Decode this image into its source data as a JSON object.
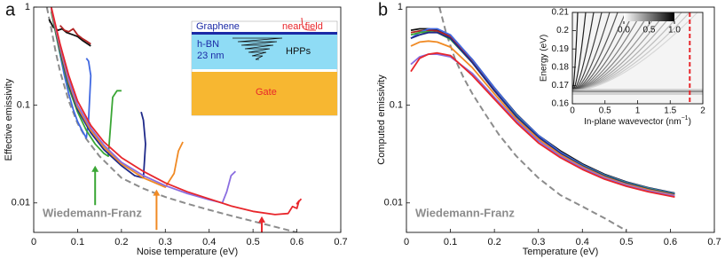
{
  "chart_data": [
    {
      "type": "line",
      "panel_label": "a",
      "xlabel": "Noise temperature (eV)",
      "ylabel": "Effective emissivity",
      "xlim": [
        0,
        0.7
      ],
      "xticks": [
        0,
        0.1,
        0.2,
        0.3,
        0.4,
        0.5,
        0.6,
        0.7
      ],
      "ylim": [
        0.005,
        1
      ],
      "yticks": [
        0.01,
        0.1,
        1
      ],
      "yscale": "log",
      "annotation": "Wiedemann-Franz",
      "annotation_color": "#8c8c8c",
      "schematic": {
        "graphene": "Graphene",
        "near_field": "near-field",
        "hbn": "h-BN",
        "thickness": "23 nm",
        "hpps": "HPPs",
        "gate": "Gate"
      },
      "series": [
        {
          "color": "#8c8c8c",
          "dash": true,
          "x": [
            0.03,
            0.04,
            0.05,
            0.06,
            0.08,
            0.1,
            0.12,
            0.15,
            0.2,
            0.25,
            0.3,
            0.35,
            0.4,
            0.45,
            0.5,
            0.55,
            0.6
          ],
          "values": [
            1,
            0.6,
            0.35,
            0.22,
            0.11,
            0.065,
            0.045,
            0.03,
            0.018,
            0.014,
            0.0115,
            0.0098,
            0.0085,
            0.0074,
            0.0065,
            0.0057,
            0.005
          ]
        },
        {
          "color": "#111111",
          "x": [
            0.035,
            0.045,
            0.055,
            0.065,
            0.075,
            0.09,
            0.1,
            0.11,
            0.12,
            0.13
          ],
          "values": [
            0.75,
            0.62,
            0.58,
            0.6,
            0.55,
            0.52,
            0.5,
            0.46,
            0.43,
            0.4
          ]
        },
        {
          "color": "#b22222",
          "x": [
            0.06,
            0.07,
            0.08,
            0.09,
            0.1,
            0.11,
            0.12,
            0.13
          ],
          "values": [
            0.65,
            0.58,
            0.56,
            0.6,
            0.52,
            0.48,
            0.45,
            0.42
          ]
        },
        {
          "color": "#4169e1",
          "x": [
            0.04,
            0.05,
            0.06,
            0.07,
            0.08,
            0.09,
            0.1,
            0.11,
            0.12,
            0.125,
            0.13,
            0.125,
            0.12
          ],
          "values": [
            0.9,
            0.55,
            0.33,
            0.2,
            0.13,
            0.09,
            0.068,
            0.055,
            0.046,
            0.07,
            0.2,
            0.28,
            0.3
          ]
        },
        {
          "color": "#3aa635",
          "x": [
            0.04,
            0.05,
            0.06,
            0.08,
            0.1,
            0.12,
            0.14,
            0.16,
            0.17,
            0.175,
            0.18,
            0.19,
            0.2
          ],
          "values": [
            0.9,
            0.55,
            0.34,
            0.15,
            0.085,
            0.055,
            0.04,
            0.032,
            0.03,
            0.06,
            0.12,
            0.14,
            0.14
          ]
        },
        {
          "color": "#1f2a8a",
          "x": [
            0.04,
            0.05,
            0.06,
            0.08,
            0.1,
            0.13,
            0.16,
            0.2,
            0.23,
            0.25,
            0.255,
            0.25,
            0.245
          ],
          "values": [
            0.95,
            0.58,
            0.36,
            0.16,
            0.09,
            0.052,
            0.035,
            0.024,
            0.019,
            0.018,
            0.04,
            0.07,
            0.085
          ]
        },
        {
          "color": "#f08a24",
          "x": [
            0.04,
            0.05,
            0.06,
            0.08,
            0.1,
            0.13,
            0.16,
            0.2,
            0.25,
            0.3,
            0.32,
            0.33,
            0.34
          ],
          "values": [
            0.95,
            0.6,
            0.38,
            0.17,
            0.095,
            0.055,
            0.037,
            0.025,
            0.018,
            0.0145,
            0.02,
            0.034,
            0.042
          ]
        },
        {
          "color": "#8a6ee0",
          "x": [
            0.04,
            0.05,
            0.06,
            0.08,
            0.1,
            0.13,
            0.16,
            0.2,
            0.25,
            0.3,
            0.35,
            0.4,
            0.43,
            0.44,
            0.45,
            0.46
          ],
          "values": [
            0.98,
            0.62,
            0.4,
            0.18,
            0.1,
            0.058,
            0.039,
            0.026,
            0.019,
            0.015,
            0.0125,
            0.0108,
            0.01,
            0.013,
            0.019,
            0.021
          ]
        },
        {
          "color": "#e8262b",
          "x": [
            0.04,
            0.05,
            0.06,
            0.08,
            0.1,
            0.13,
            0.16,
            0.2,
            0.25,
            0.3,
            0.35,
            0.4,
            0.45,
            0.5,
            0.55,
            0.58,
            0.59,
            0.6,
            0.605,
            0.6,
            0.61
          ],
          "values": [
            1,
            0.65,
            0.42,
            0.2,
            0.11,
            0.062,
            0.042,
            0.029,
            0.021,
            0.016,
            0.013,
            0.011,
            0.0093,
            0.0082,
            0.0076,
            0.0078,
            0.0092,
            0.0088,
            0.0105,
            0.0098,
            0.011
          ]
        }
      ],
      "arrows": [
        {
          "x": 0.14,
          "from": 0.0095,
          "to": 0.024,
          "color": "#3aa635"
        },
        {
          "x": 0.28,
          "from": 0.0053,
          "to": 0.0137,
          "color": "#f08a24"
        },
        {
          "x": 0.52,
          "from": 0.005,
          "to": 0.0073,
          "color": "#e8262b"
        }
      ]
    },
    {
      "type": "line",
      "panel_label": "b",
      "xlabel": "Temperature (eV)",
      "ylabel": "Computed emissivity",
      "xlim": [
        0,
        0.7
      ],
      "xticks": [
        0,
        0.1,
        0.2,
        0.3,
        0.4,
        0.5,
        0.6,
        0.7
      ],
      "ylim": [
        0.005,
        1
      ],
      "yticks": [
        0.01,
        0.1,
        1
      ],
      "yscale": "log",
      "annotation": "Wiedemann-Franz",
      "annotation_color": "#8c8c8c",
      "x": [
        0.01,
        0.03,
        0.05,
        0.07,
        0.1,
        0.15,
        0.2,
        0.25,
        0.3,
        0.35,
        0.4,
        0.45,
        0.5,
        0.55,
        0.61
      ],
      "series": [
        {
          "color": "#8c8c8c",
          "dash": true,
          "x": [
            0.075,
            0.09,
            0.11,
            0.13,
            0.15,
            0.18,
            0.21,
            0.25,
            0.3,
            0.35,
            0.4,
            0.45,
            0.5
          ],
          "values": [
            1,
            0.55,
            0.3,
            0.19,
            0.13,
            0.08,
            0.05,
            0.03,
            0.018,
            0.012,
            0.0092,
            0.007,
            0.0052
          ]
        },
        {
          "color": "#111111",
          "values": [
            0.58,
            0.6,
            0.6,
            0.58,
            0.5,
            0.29,
            0.15,
            0.081,
            0.049,
            0.034,
            0.025,
            0.0196,
            0.0164,
            0.0143,
            0.0126
          ]
        },
        {
          "color": "#b22222",
          "values": [
            0.55,
            0.57,
            0.58,
            0.57,
            0.5,
            0.28,
            0.145,
            0.079,
            0.048,
            0.033,
            0.0243,
            0.0192,
            0.0161,
            0.0141,
            0.0124
          ]
        },
        {
          "color": "#4169e1",
          "values": [
            0.48,
            0.55,
            0.6,
            0.6,
            0.52,
            0.29,
            0.15,
            0.08,
            0.049,
            0.033,
            0.0245,
            0.0193,
            0.0162,
            0.0142,
            0.0125
          ]
        },
        {
          "color": "#3aa635",
          "values": [
            0.52,
            0.55,
            0.56,
            0.55,
            0.47,
            0.27,
            0.14,
            0.077,
            0.047,
            0.032,
            0.024,
            0.019,
            0.016,
            0.014,
            0.0123
          ]
        },
        {
          "color": "#1f2a8a",
          "values": [
            0.48,
            0.52,
            0.55,
            0.55,
            0.48,
            0.27,
            0.14,
            0.076,
            0.047,
            0.032,
            0.0238,
            0.0188,
            0.0158,
            0.0138,
            0.0122
          ]
        },
        {
          "color": "#f08a24",
          "values": [
            0.4,
            0.44,
            0.45,
            0.44,
            0.39,
            0.24,
            0.13,
            0.072,
            0.045,
            0.031,
            0.0233,
            0.0184,
            0.0155,
            0.0136,
            0.012
          ]
        },
        {
          "color": "#8a6ee0",
          "values": [
            0.26,
            0.31,
            0.33,
            0.33,
            0.31,
            0.21,
            0.12,
            0.069,
            0.043,
            0.03,
            0.0228,
            0.018,
            0.0152,
            0.0133,
            0.0118
          ]
        },
        {
          "color": "#e8262b",
          "values": [
            0.22,
            0.3,
            0.33,
            0.34,
            0.32,
            0.2,
            0.115,
            0.066,
            0.041,
            0.029,
            0.022,
            0.0175,
            0.0148,
            0.013,
            0.0115
          ]
        }
      ]
    },
    {
      "type": "heatmap",
      "xlabel": [
        "In-plane wavevector (nm",
        "−1",
        ")"
      ],
      "ylabel": "Energy (eV)",
      "xlim": [
        0,
        2
      ],
      "xticks": [
        0,
        0.5,
        1,
        1.5,
        2
      ],
      "ylim": [
        0.16,
        0.21
      ],
      "yticks": [
        0.16,
        0.17,
        0.18,
        0.19,
        0.2,
        0.21
      ],
      "cbar_lim": [
        0,
        1
      ],
      "cbar_ticks": [
        {
          "value": 0,
          "label": "0.0"
        },
        {
          "value": 0.5,
          "label": "0.5"
        },
        {
          "value": 1,
          "label": "1.0"
        }
      ],
      "cutoff_x": 1.8,
      "cutoff_color": "#e8262b"
    }
  ]
}
